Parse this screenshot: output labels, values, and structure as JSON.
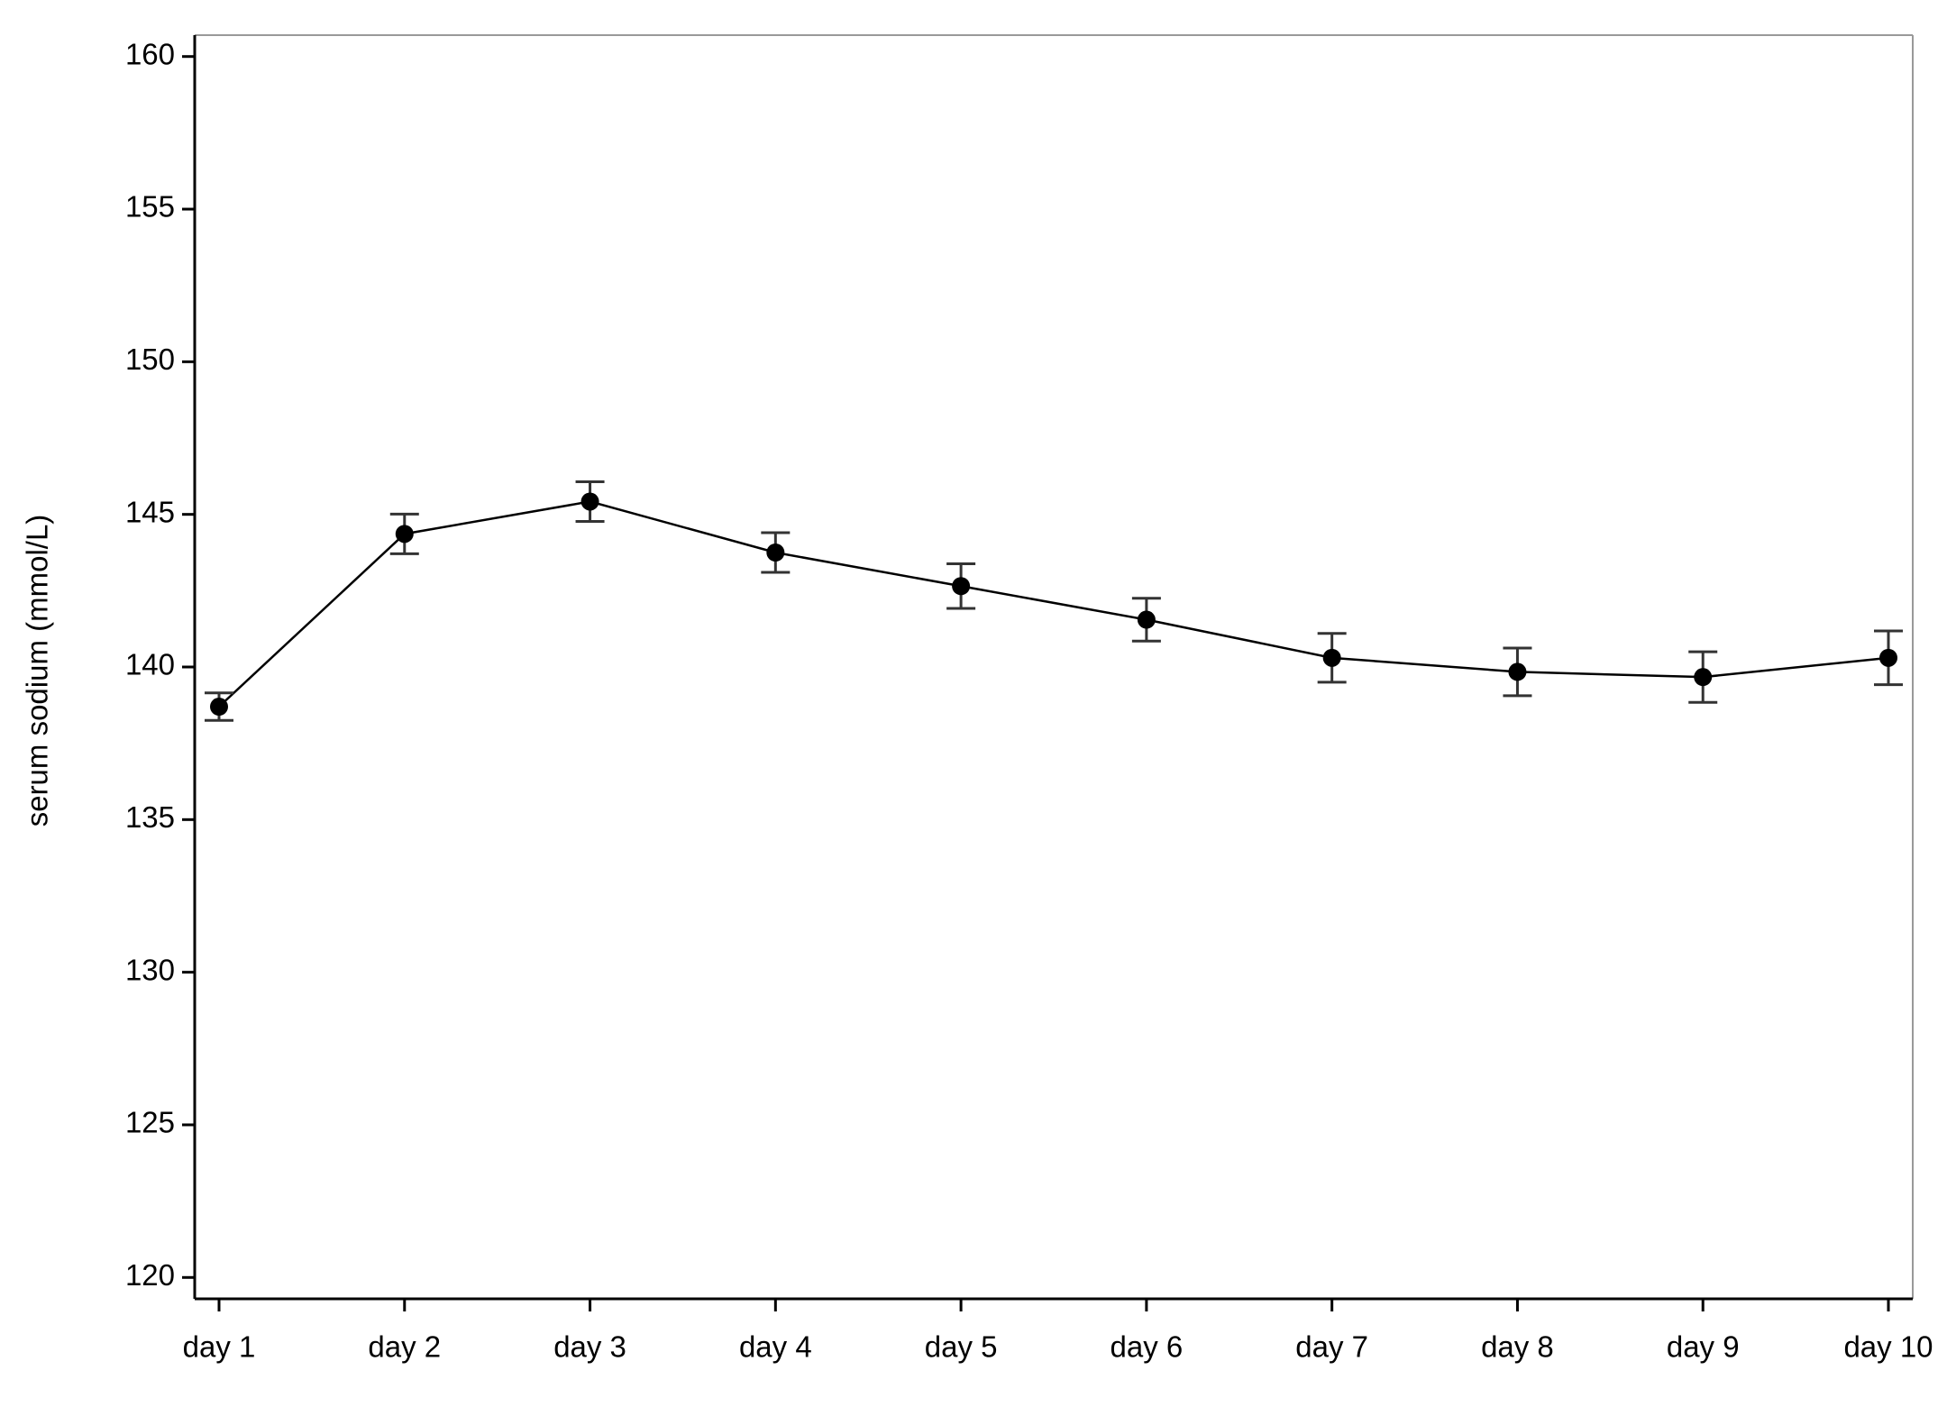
{
  "chart_data": {
    "type": "line",
    "y_label": "serum sodium (mmol/L)",
    "categories": [
      "day 1",
      "day 2",
      "day 3",
      "day 4",
      "day 5",
      "day 6",
      "day 7",
      "day 8",
      "day 9",
      "day 10"
    ],
    "values": [
      138.7,
      144.36,
      145.42,
      143.75,
      142.65,
      141.55,
      140.3,
      139.84,
      139.67,
      140.3
    ],
    "errors": [
      0.45,
      0.65,
      0.65,
      0.65,
      0.73,
      0.7,
      0.8,
      0.78,
      0.83,
      0.88
    ],
    "color": "#000000",
    "ylim": [
      119.3,
      160.7
    ],
    "yticks": [
      120,
      125,
      130,
      135,
      140,
      145,
      150,
      155,
      160
    ],
    "grid": false
  }
}
